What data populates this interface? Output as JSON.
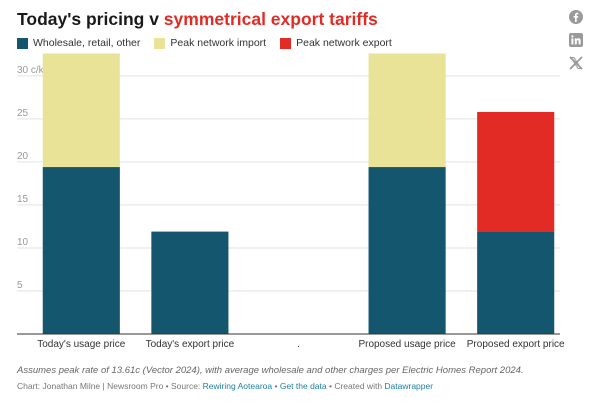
{
  "header": {
    "title_prefix": "Today's pricing v ",
    "title_accent": "symmetrical export tariffs"
  },
  "legend": [
    {
      "label": "Wholesale, retail, other",
      "color": "#15566f"
    },
    {
      "label": "Peak network import",
      "color": "#e8e397"
    },
    {
      "label": "Peak network export",
      "color": "#e22b24"
    }
  ],
  "social": {
    "icons": [
      "facebook-icon",
      "linkedin-icon",
      "x-icon"
    ]
  },
  "chart_data": {
    "type": "bar",
    "stacked": true,
    "categories": [
      "Today's usage price",
      "Today's export price",
      ".",
      "Proposed usage price",
      "Proposed export price"
    ],
    "series": [
      {
        "name": "Wholesale, retail, other",
        "color": "#15566f",
        "values": [
          19.4,
          11.9,
          0,
          19.4,
          11.9
        ]
      },
      {
        "name": "Peak network import",
        "color": "#e8e397",
        "values": [
          13.2,
          0,
          0,
          13.2,
          0
        ]
      },
      {
        "name": "Peak network export",
        "color": "#e22b24",
        "values": [
          0,
          0,
          0,
          0,
          13.9
        ]
      }
    ],
    "yticks": [
      {
        "value": 5,
        "label": "5"
      },
      {
        "value": 10,
        "label": "10"
      },
      {
        "value": 15,
        "label": "15"
      },
      {
        "value": 20,
        "label": "20"
      },
      {
        "value": 25,
        "label": "25"
      },
      {
        "value": 30,
        "label": "30 c/kWh"
      }
    ],
    "ylim": [
      0,
      33
    ],
    "grid": true,
    "legend_position": "top-left"
  },
  "footer": {
    "note": "Assumes peak rate of 13.61c (Vector 2024), with average wholesale and other charges per Electric Homes Report 2024.",
    "credit_prefix": "Chart: Jonathan Milne | Newsroom Pro • Source: ",
    "source_link": "Rewiring Aotearoa",
    "sep1": " • ",
    "data_link": "Get the data",
    "sep2": " • Created with ",
    "tool_link": "Datawrapper"
  }
}
